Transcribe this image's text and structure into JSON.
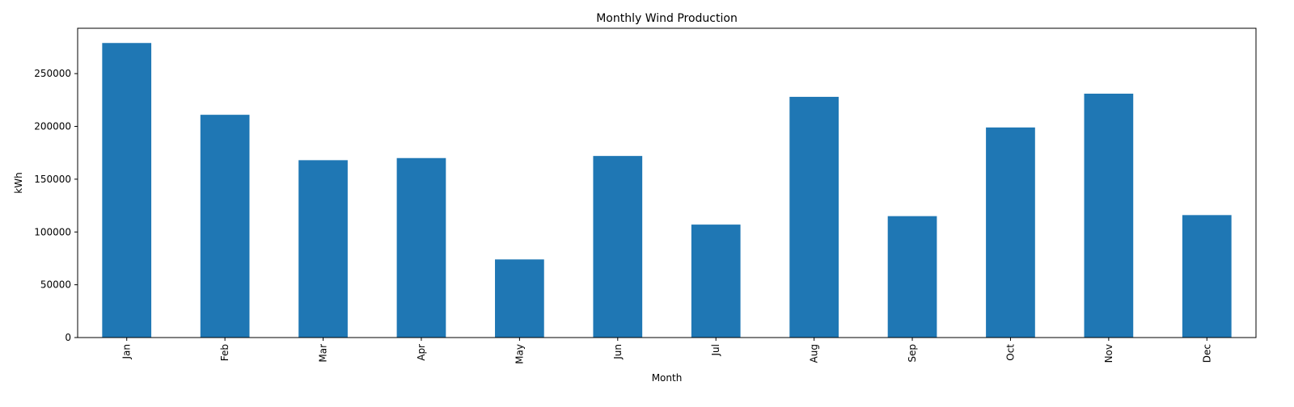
{
  "chart_data": {
    "type": "bar",
    "title": "Monthly Wind Production",
    "xlabel": "Month",
    "ylabel": "kWh",
    "categories": [
      "Jan",
      "Feb",
      "Mar",
      "Apr",
      "May",
      "Jun",
      "Jul",
      "Aug",
      "Sep",
      "Oct",
      "Nov",
      "Dec"
    ],
    "values": [
      279000,
      211000,
      168000,
      170000,
      74000,
      172000,
      107000,
      228000,
      115000,
      199000,
      231000,
      116000
    ],
    "ylim": [
      0,
      292950
    ],
    "yticks": [
      0,
      50000,
      100000,
      150000,
      200000,
      250000
    ],
    "ytick_labels": [
      "0",
      "50000",
      "100000",
      "150000",
      "200000",
      "250000"
    ],
    "bar_color": "#1f77b4",
    "grid": false,
    "legend": "none"
  }
}
